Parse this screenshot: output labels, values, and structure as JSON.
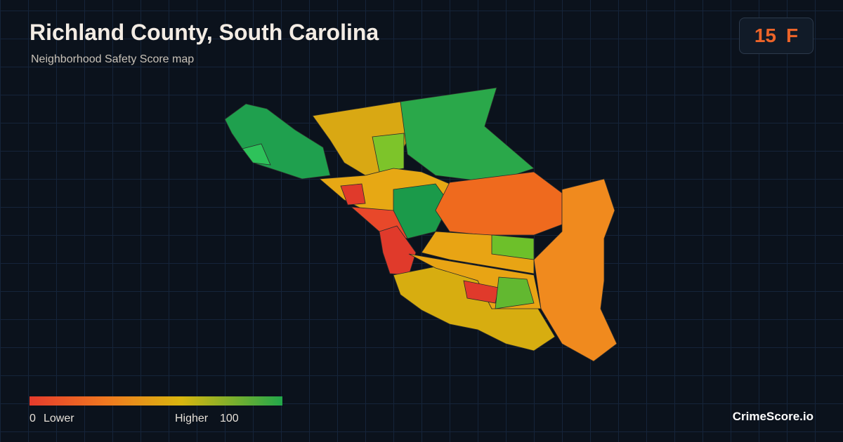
{
  "header": {
    "title": "Richland County, South Carolina",
    "subtitle": "Neighborhood Safety Score map"
  },
  "score": {
    "value": 15,
    "grade": "F"
  },
  "legend": {
    "min": 0,
    "min_label": "Lower",
    "max_label": "Higher",
    "max": 100
  },
  "brand": "CrimeScore.io"
}
